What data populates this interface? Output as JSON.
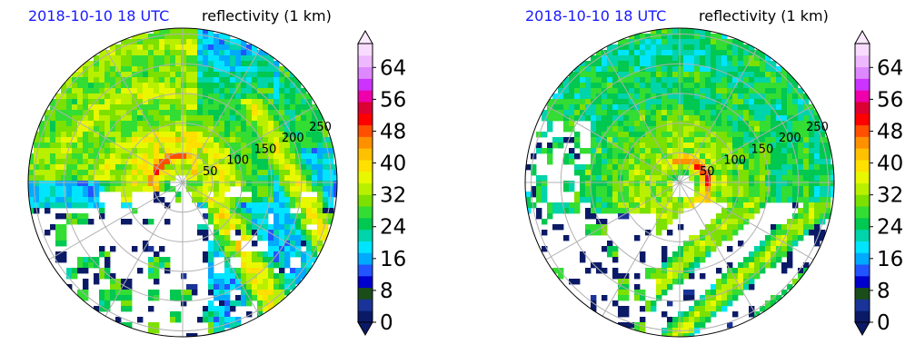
{
  "chart_data": [
    {
      "type": "heatmap",
      "subtype": "polar-radar-reflectivity",
      "title_left": "2018-10-10 18 UTC",
      "title_right": "reflectivity (1 km)",
      "range_rings_km": [
        50,
        100,
        150,
        200,
        250
      ],
      "ring_labels": [
        "50",
        "100",
        "150",
        "200",
        "250"
      ],
      "grid": true,
      "colorbar": {
        "label": "",
        "ticks": [
          0,
          8,
          16,
          24,
          32,
          40,
          48,
          56,
          64
        ],
        "tick_labels": [
          "0",
          "8",
          "16",
          "24",
          "32",
          "40",
          "48",
          "56",
          "64"
        ],
        "range": [
          0,
          70
        ],
        "extend": "both"
      },
      "features": {
        "eye_offset_km": [
          -5,
          0
        ],
        "eyewall_max_dbz": 52,
        "coverage": "northern semicircle and eastern rainbands"
      }
    },
    {
      "type": "heatmap",
      "subtype": "polar-radar-reflectivity",
      "title_left": "2018-10-10 18 UTC",
      "title_right": "reflectivity (1 km)",
      "range_rings_km": [
        50,
        100,
        150,
        200,
        250
      ],
      "ring_labels": [
        "50",
        "100",
        "150",
        "200",
        "250"
      ],
      "grid": true,
      "colorbar": {
        "label": "",
        "ticks": [
          0,
          8,
          16,
          24,
          32,
          40,
          48,
          56,
          64
        ],
        "tick_labels": [
          "0",
          "8",
          "16",
          "24",
          "32",
          "40",
          "48",
          "56",
          "64"
        ],
        "range": [
          0,
          70
        ],
        "extend": "both"
      },
      "features": {
        "eye_offset_km": [
          5,
          -5
        ],
        "eyewall_max_dbz": 54,
        "coverage": "most of disk with southeastern spiral rainbands"
      }
    }
  ],
  "colormap": [
    "#0a1a66",
    "#1a3399",
    "#1a4d1a",
    "#0000cc",
    "#2255ff",
    "#00aaff",
    "#00e5ff",
    "#00d4aa",
    "#00c850",
    "#33dd33",
    "#7ce000",
    "#b8f000",
    "#e8f800",
    "#ffe000",
    "#ffc000",
    "#ff9000",
    "#ff5000",
    "#ff0000",
    "#dd0033",
    "#ee00aa",
    "#cc33ff",
    "#dd88ff",
    "#eeb8ff",
    "#f8dcff"
  ]
}
